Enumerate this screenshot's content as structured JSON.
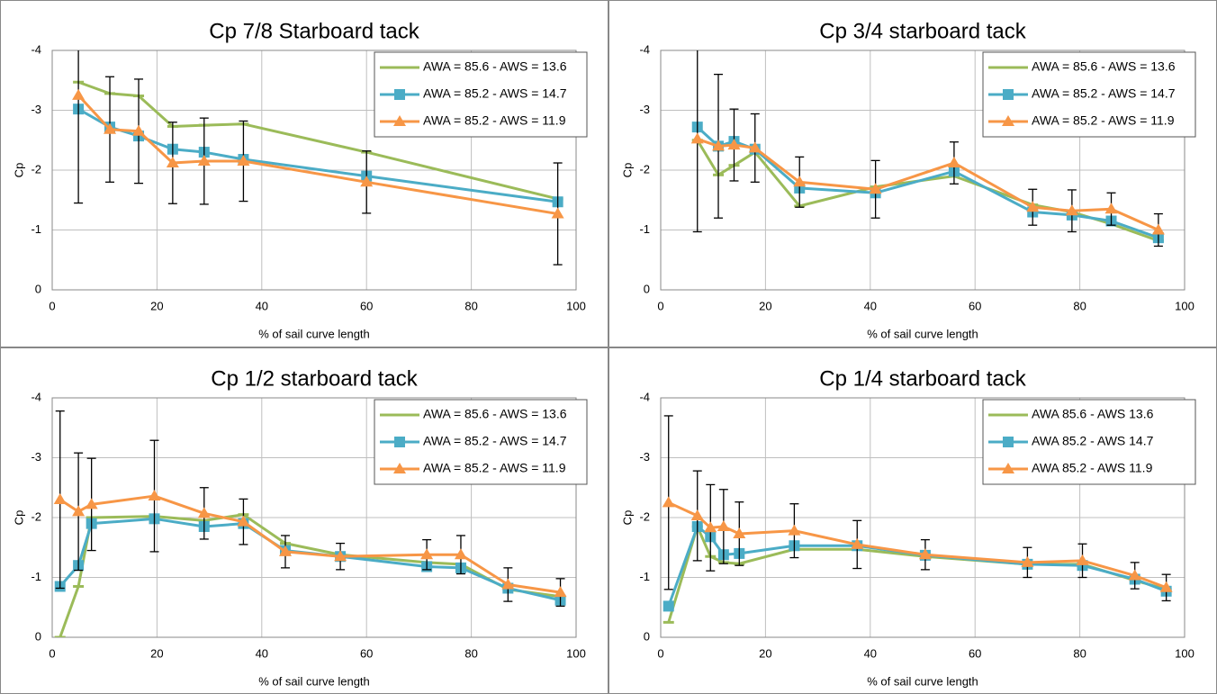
{
  "chart_data": [
    {
      "type": "line",
      "title": "Cp 7/8 Starboard tack",
      "xlabel": "% of sail curve length",
      "ylabel": "Cp",
      "xlim": [
        0,
        100
      ],
      "xticks": [
        0,
        20,
        40,
        60,
        80,
        100
      ],
      "ylim": [
        0,
        -4
      ],
      "yticks": [
        0,
        -1,
        -2,
        -3,
        -4
      ],
      "grid": true,
      "legend": "upper right",
      "x": [
        5,
        11,
        16.5,
        23,
        29,
        36.5,
        60,
        96.5
      ],
      "series": [
        {
          "name": "AWA = 85.6 - AWS = 13.6",
          "color": "#9bbb59",
          "marker": "dash",
          "values": [
            -3.47,
            -3.28,
            -3.24,
            -2.73,
            -2.75,
            -2.77,
            -2.3,
            -1.52
          ]
        },
        {
          "name": "AWA = 85.2 - AWS = 14.7",
          "color": "#4bacc6",
          "marker": "square",
          "values": [
            -3.02,
            -2.72,
            -2.57,
            -2.35,
            -2.3,
            -2.18,
            -1.9,
            -1.47
          ]
        },
        {
          "name": "AWA = 85.2 - AWS = 11.9",
          "color": "#f79646",
          "marker": "triangle",
          "values": [
            -3.25,
            -2.68,
            -2.65,
            -2.12,
            -2.15,
            -2.15,
            -1.8,
            -1.27
          ],
          "errors": [
            1.8,
            0.88,
            0.87,
            0.68,
            0.72,
            0.67,
            0.52,
            0.85
          ]
        }
      ]
    },
    {
      "type": "line",
      "title": "Cp 3/4 starboard tack",
      "xlabel": "% of sail curve length",
      "ylabel": "Cp",
      "xlim": [
        0,
        100
      ],
      "xticks": [
        0,
        20,
        40,
        60,
        80,
        100
      ],
      "ylim": [
        0,
        -4
      ],
      "yticks": [
        0,
        -1,
        -2,
        -3,
        -4
      ],
      "grid": true,
      "legend": "upper right",
      "x": [
        7,
        11,
        14,
        18,
        26.5,
        41,
        56,
        71,
        78.5,
        86,
        95
      ],
      "series": [
        {
          "name": "AWA = 85.6 - AWS = 13.6",
          "color": "#9bbb59",
          "marker": "dash",
          "values": [
            -2.5,
            -1.92,
            -2.08,
            -2.3,
            -1.4,
            -1.72,
            -1.9,
            -1.42,
            -1.3,
            -1.1,
            -0.82
          ]
        },
        {
          "name": "AWA = 85.2 - AWS = 14.7",
          "color": "#4bacc6",
          "marker": "square",
          "values": [
            -2.72,
            -2.4,
            -2.48,
            -2.35,
            -1.7,
            -1.62,
            -1.98,
            -1.3,
            -1.25,
            -1.15,
            -0.87
          ]
        },
        {
          "name": "AWA = 85.2 - AWS = 11.9",
          "color": "#f79646",
          "marker": "triangle",
          "values": [
            -2.52,
            -2.4,
            -2.42,
            -2.37,
            -1.8,
            -1.68,
            -2.12,
            -1.38,
            -1.32,
            -1.35,
            -1.0
          ],
          "errors": [
            1.55,
            1.2,
            0.6,
            0.57,
            0.42,
            0.48,
            0.35,
            0.3,
            0.35,
            0.27,
            0.27
          ]
        }
      ]
    },
    {
      "type": "line",
      "title": "Cp 1/2 starboard tack",
      "xlabel": "% of sail curve length",
      "ylabel": "Cp",
      "xlim": [
        0,
        100
      ],
      "xticks": [
        0,
        20,
        40,
        60,
        80,
        100
      ],
      "ylim": [
        0,
        -4
      ],
      "yticks": [
        0,
        -1,
        -2,
        -3,
        -4
      ],
      "grid": true,
      "legend": "upper right",
      "x": [
        1.5,
        5,
        7.5,
        19.5,
        29,
        36.5,
        44.5,
        55,
        71.5,
        78,
        87,
        97
      ],
      "series": [
        {
          "name": "AWA = 85.6 - AWS = 13.6",
          "color": "#9bbb59",
          "marker": "dash",
          "values": [
            0,
            -0.85,
            -2.0,
            -2.02,
            -1.95,
            -2.05,
            -1.57,
            -1.38,
            -1.25,
            -1.22,
            -0.8,
            -0.68
          ]
        },
        {
          "name": "AWA = 85.2 - AWS = 14.7",
          "color": "#4bacc6",
          "marker": "square",
          "values": [
            -0.85,
            -1.2,
            -1.9,
            -1.98,
            -1.85,
            -1.9,
            -1.45,
            -1.35,
            -1.18,
            -1.16,
            -0.82,
            -0.62
          ]
        },
        {
          "name": "AWA = 85.2 - AWS = 11.9",
          "color": "#f79646",
          "marker": "triangle",
          "values": [
            -2.3,
            -2.1,
            -2.22,
            -2.36,
            -2.07,
            -1.93,
            -1.43,
            -1.35,
            -1.38,
            -1.38,
            -0.88,
            -0.75
          ],
          "errors": [
            1.48,
            0.98,
            0.77,
            0.93,
            0.43,
            0.38,
            0.27,
            0.22,
            0.25,
            0.32,
            0.28,
            0.23
          ]
        }
      ]
    },
    {
      "type": "line",
      "title": "Cp 1/4 starboard tack",
      "xlabel": "% of sail curve length",
      "ylabel": "Cp",
      "xlim": [
        0,
        100
      ],
      "xticks": [
        0,
        20,
        40,
        60,
        80,
        100
      ],
      "ylim": [
        0,
        -4
      ],
      "yticks": [
        0,
        -1,
        -2,
        -3,
        -4
      ],
      "grid": true,
      "legend": "upper right",
      "x": [
        1.5,
        7,
        9.5,
        12,
        15,
        25.5,
        37.5,
        50.5,
        70,
        80.5,
        90.5,
        96.5
      ],
      "series": [
        {
          "name": "AWA 85.6 - AWS 13.6",
          "color": "#9bbb59",
          "marker": "dash",
          "values": [
            -0.25,
            -1.85,
            -1.35,
            -1.25,
            -1.23,
            -1.47,
            -1.47,
            -1.35,
            -1.22,
            -1.22,
            -0.95,
            -0.8
          ]
        },
        {
          "name": "AWA 85.2 - AWS 14.7",
          "color": "#4bacc6",
          "marker": "square",
          "values": [
            -0.52,
            -1.85,
            -1.68,
            -1.38,
            -1.4,
            -1.53,
            -1.53,
            -1.37,
            -1.22,
            -1.2,
            -0.97,
            -0.77
          ]
        },
        {
          "name": "AWA 85.2 - AWS 11.9",
          "color": "#f79646",
          "marker": "triangle",
          "values": [
            -2.25,
            -2.03,
            -1.83,
            -1.85,
            -1.73,
            -1.78,
            -1.55,
            -1.38,
            -1.25,
            -1.28,
            -1.03,
            -0.83
          ],
          "errors": [
            1.45,
            0.75,
            0.72,
            0.62,
            0.53,
            0.45,
            0.4,
            0.25,
            0.25,
            0.28,
            0.22,
            0.22
          ]
        }
      ]
    }
  ]
}
